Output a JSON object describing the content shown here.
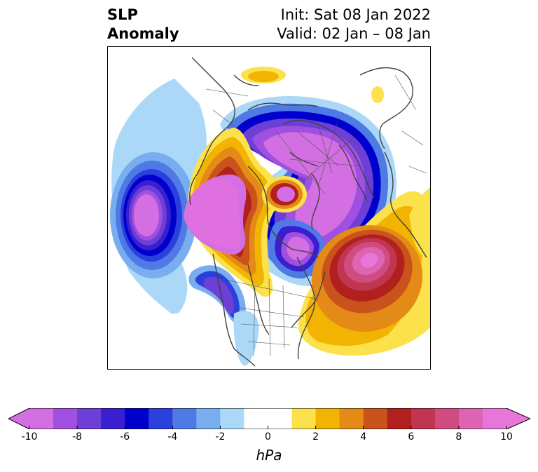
{
  "title": {
    "left_line1": "SLP",
    "left_line2": "Anomaly",
    "right_line1": "Init: Sat 08 Jan 2022",
    "right_line2": "Valid: 02 Jan – 08 Jan"
  },
  "colorbar": {
    "unit": "hPa",
    "min": -10,
    "max": 10,
    "extend": "both",
    "bounds": [
      -10,
      -9,
      -8,
      -7,
      -6,
      -5,
      -4,
      -3,
      -2,
      -1,
      1,
      2,
      3,
      4,
      5,
      6,
      7,
      8,
      9,
      10
    ],
    "colors": [
      "#d46fe3",
      "#a050e0",
      "#6d3fd6",
      "#3a1fd0",
      "#0000cd",
      "#2a3fdc",
      "#4f7ae6",
      "#78aef0",
      "#acd8f8",
      "#ffffff",
      "#fbe24c",
      "#f2b400",
      "#e38b16",
      "#c9531b",
      "#b1201e",
      "#c03550",
      "#d04c80",
      "#dc64b0",
      "#e676d8"
    ],
    "extend_low_color": "#d46fe3",
    "extend_high_color": "#e676d8",
    "ticks": [
      {
        "value": -10,
        "label": "-10"
      },
      {
        "value": -8,
        "label": "-8"
      },
      {
        "value": -6,
        "label": "-6"
      },
      {
        "value": -4,
        "label": "-4"
      },
      {
        "value": -2,
        "label": "-2"
      },
      {
        "value": 0,
        "label": "0"
      },
      {
        "value": 2,
        "label": "2"
      },
      {
        "value": 4,
        "label": "4"
      },
      {
        "value": 6,
        "label": "6"
      },
      {
        "value": 8,
        "label": "8"
      },
      {
        "value": 10,
        "label": "10"
      }
    ]
  }
}
